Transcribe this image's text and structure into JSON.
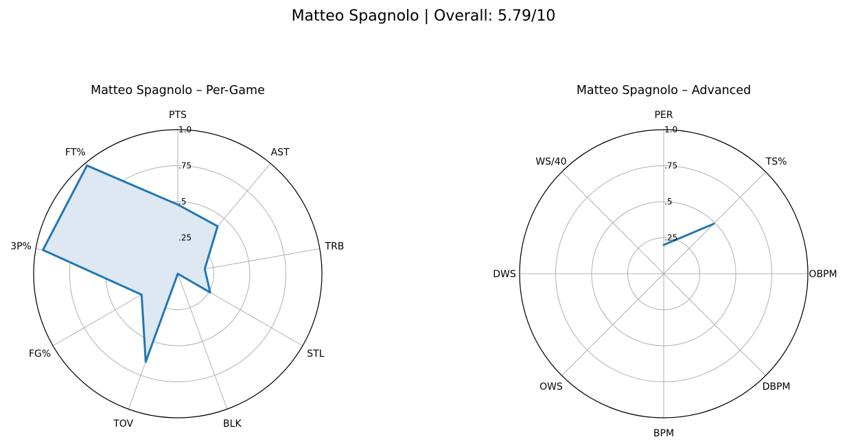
{
  "figure": {
    "suptitle": "Matteo Spagnolo | Overall: 5.79/10"
  },
  "colors": {
    "line": "#1f77b4",
    "fill": "#dde8f2",
    "grid": "#b0b0b0"
  },
  "chart_data": [
    {
      "type": "radar",
      "title": "Matteo Spagnolo – Per-Game",
      "rlim": [
        0,
        1.0
      ],
      "rticks": [
        0.25,
        0.5,
        0.75,
        1.0
      ],
      "rtick_labels": [
        ".25",
        ".5",
        ".75",
        "1.0"
      ],
      "grid": true,
      "filled": true,
      "categories": [
        "PTS",
        "AST",
        "TRB",
        "STL",
        "BLK",
        "TOV",
        "FG%",
        "3P%",
        "FT%"
      ],
      "series": [
        {
          "values": [
            0.48,
            0.43,
            0.19,
            0.26,
            0.0,
            0.65,
            0.29,
            0.95,
            0.98
          ]
        }
      ]
    },
    {
      "type": "radar",
      "title": "Matteo Spagnolo – Advanced",
      "rlim": [
        0,
        1.0
      ],
      "rticks": [
        0.25,
        0.5,
        0.75,
        1.0
      ],
      "rtick_labels": [
        ".25",
        ".5",
        ".75",
        "1.0"
      ],
      "grid": true,
      "filled": false,
      "categories": [
        "PER",
        "TS%",
        "OBPM",
        "DBPM",
        "BPM",
        "OWS",
        "DWS",
        "WS/40"
      ],
      "series": [
        {
          "values": [
            0.2,
            0.49,
            null,
            null,
            null,
            null,
            null,
            null
          ]
        }
      ]
    }
  ]
}
